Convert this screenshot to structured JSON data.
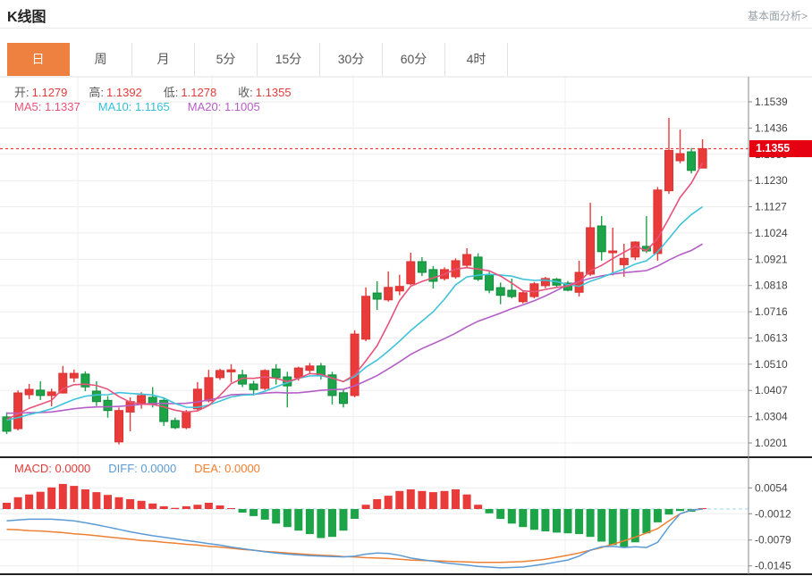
{
  "header": {
    "title": "K线图",
    "link": "基本面分析>"
  },
  "tabs": {
    "items": [
      "日",
      "周",
      "月",
      "5分",
      "15分",
      "30分",
      "60分",
      "4时"
    ],
    "active_index": 0
  },
  "legend_ohlc": {
    "o_label": "开:",
    "o": "1.1279",
    "h_label": "高:",
    "h": "1.1392",
    "l_label": "低:",
    "l": "1.1278",
    "c_label": "收:",
    "c": "1.1355"
  },
  "legend_ma": {
    "ma5_label": "MA5:",
    "ma5": "1.1337",
    "ma10_label": "MA10:",
    "ma10": "1.1165",
    "ma20_label": "MA20:",
    "ma20": "1.1005"
  },
  "legend_macd": {
    "macd_label": "MACD:",
    "macd": "0.0000",
    "diff_label": "DIFF:",
    "diff": "0.0000",
    "dea_label": "DEA:",
    "dea": "0.0000"
  },
  "price_badge": {
    "value": "1.1355"
  },
  "chart_data": {
    "type": "candlestick",
    "title": "K线图",
    "y_range": [
      1.0201,
      1.1539
    ],
    "y_ticks": [
      "1.1539",
      "1.1436",
      "1.1333",
      "1.1230",
      "1.1127",
      "1.1024",
      "1.0921",
      "1.0818",
      "1.0716",
      "1.0613",
      "1.0510",
      "1.0407",
      "1.0304",
      "1.0201"
    ],
    "current_price": 1.1355,
    "current_price_label": "1.1355",
    "v_grid": [
      87,
      237,
      395,
      632
    ],
    "colors": {
      "up": "#e83b3a",
      "up_border": "#d93432",
      "down": "#1da449",
      "down_border": "#0f8a3a",
      "ma5": "#e8537a",
      "ma10": "#3fc3da",
      "ma20": "#b45ec6",
      "diff": "#5b9bd5",
      "dea": "#ed8033",
      "badge": "#e50012",
      "dotted": "#f43b3b"
    },
    "ma_windows": [
      5,
      10,
      20
    ],
    "ma_seed": [
      1.04,
      1.039,
      1.038,
      1.037,
      1.036,
      1.035,
      1.034,
      1.033,
      1.032,
      1.031,
      1.03,
      1.0295,
      1.029,
      1.0285,
      1.028,
      1.0285,
      1.029,
      1.03,
      1.031,
      1.032
    ],
    "candles": [
      [
        1.0303,
        1.0321,
        1.0236,
        1.0247
      ],
      [
        1.0257,
        1.0407,
        1.025,
        1.0397
      ],
      [
        1.039,
        1.0432,
        1.0373,
        1.0411
      ],
      [
        1.0408,
        1.0443,
        1.0369,
        1.0387
      ],
      [
        1.0387,
        1.0414,
        1.0345,
        1.0401
      ],
      [
        1.0397,
        1.0503,
        1.0395,
        1.0474
      ],
      [
        1.0456,
        1.0489,
        1.0439,
        1.0474
      ],
      [
        1.0471,
        1.0482,
        1.0404,
        1.0421
      ],
      [
        1.0404,
        1.0443,
        1.0346,
        1.0363
      ],
      [
        1.0368,
        1.0385,
        1.03,
        1.0328
      ],
      [
        1.0205,
        1.034,
        1.0195,
        1.0328
      ],
      [
        1.0322,
        1.038,
        1.0247,
        1.0363
      ],
      [
        1.0356,
        1.04,
        1.0335,
        1.0387
      ],
      [
        1.038,
        1.042,
        1.034,
        1.0352
      ],
      [
        1.0368,
        1.038,
        1.0268,
        1.0285
      ],
      [
        1.0289,
        1.03,
        1.0255,
        1.0261
      ],
      [
        1.0261,
        1.033,
        1.0255,
        1.0324
      ],
      [
        1.0335,
        1.044,
        1.033,
        1.0412
      ],
      [
        1.0366,
        1.0488,
        1.036,
        1.0457
      ],
      [
        1.0457,
        1.0492,
        1.0448,
        1.0485
      ],
      [
        1.048,
        1.051,
        1.0438,
        1.0488
      ],
      [
        1.0468,
        1.0488,
        1.042,
        1.0432
      ],
      [
        1.0432,
        1.0445,
        1.0387,
        1.041
      ],
      [
        1.0415,
        1.049,
        1.0408,
        1.0485
      ],
      [
        1.0491,
        1.051,
        1.043,
        1.0457
      ],
      [
        1.046,
        1.048,
        1.034,
        1.0425
      ],
      [
        1.0457,
        1.05,
        1.0445,
        1.0495
      ],
      [
        1.0486,
        1.0515,
        1.0475,
        1.0503
      ],
      [
        1.0503,
        1.0515,
        1.045,
        1.0468
      ],
      [
        1.0468,
        1.048,
        1.0352,
        1.0387
      ],
      [
        1.0398,
        1.041,
        1.034,
        1.0356
      ],
      [
        1.0387,
        1.0643,
        1.038,
        1.0628
      ],
      [
        1.0608,
        1.0811,
        1.06,
        1.0776
      ],
      [
        1.0789,
        1.0835,
        1.0723,
        1.0765
      ],
      [
        1.0762,
        1.0874,
        1.0755,
        1.0811
      ],
      [
        1.0797,
        1.0861,
        1.078,
        1.0815
      ],
      [
        1.0825,
        1.0947,
        1.082,
        1.0912
      ],
      [
        1.0912,
        1.093,
        1.0855,
        1.087
      ],
      [
        1.0881,
        1.0895,
        1.0807,
        1.0835
      ],
      [
        1.0846,
        1.089,
        1.0838,
        1.0881
      ],
      [
        1.0853,
        1.0925,
        1.0845,
        1.0916
      ],
      [
        1.0898,
        1.0965,
        1.089,
        1.094
      ],
      [
        1.093,
        1.0945,
        1.0836,
        1.0843
      ],
      [
        1.086,
        1.0872,
        1.0788,
        1.08
      ],
      [
        1.081,
        1.083,
        1.0745,
        1.078
      ],
      [
        1.08,
        1.0846,
        1.0768,
        1.0775
      ],
      [
        1.0755,
        1.0795,
        1.0748,
        1.079
      ],
      [
        1.0775,
        1.0832,
        1.0768,
        1.0825
      ],
      [
        1.0818,
        1.0852,
        1.0808,
        1.0846
      ],
      [
        1.0843,
        1.0848,
        1.0812,
        1.082
      ],
      [
        1.0828,
        1.0836,
        1.0796,
        1.08
      ],
      [
        1.0792,
        1.0916,
        1.0775,
        1.087
      ],
      [
        1.0863,
        1.1143,
        1.0856,
        1.1045
      ],
      [
        1.1052,
        1.1091,
        1.0916,
        1.0951
      ],
      [
        1.0947,
        1.1045,
        1.0858,
        1.0954
      ],
      [
        1.09,
        1.0982,
        1.0853,
        1.0925
      ],
      [
        1.093,
        1.0992,
        1.0918,
        1.0989
      ],
      [
        1.0972,
        1.1091,
        1.0946,
        1.0954
      ],
      [
        1.0944,
        1.1205,
        1.0916,
        1.1193
      ],
      [
        1.119,
        1.1476,
        1.1178,
        1.1348
      ],
      [
        1.1308,
        1.143,
        1.1298,
        1.1336
      ],
      [
        1.1343,
        1.1358,
        1.1258,
        1.127
      ],
      [
        1.1279,
        1.1392,
        1.1278,
        1.1355
      ]
    ],
    "macd": {
      "tick_labels": [
        "0.0054",
        "-0.0012",
        "-0.0079",
        "-0.0145"
      ],
      "tick_values": [
        0.0054,
        -0.0012,
        -0.0079,
        -0.0145
      ],
      "hist": [
        0.0016,
        0.003,
        0.0037,
        0.0044,
        0.0055,
        0.0064,
        0.0059,
        0.005,
        0.0043,
        0.0036,
        0.003,
        0.0025,
        0.0021,
        0.0014,
        0.0007,
        0.0003,
        0.0007,
        0.0011,
        0.0016,
        0.0009,
        0.0002,
        -0.0009,
        -0.0018,
        -0.0027,
        -0.0037,
        -0.0046,
        -0.0055,
        -0.0064,
        -0.0074,
        -0.0071,
        -0.0055,
        -0.0025,
        0.0011,
        0.0025,
        0.0034,
        0.0046,
        0.005,
        0.0046,
        0.0043,
        0.0046,
        0.005,
        0.0037,
        0.0011,
        -0.0011,
        -0.0025,
        -0.0037,
        -0.0046,
        -0.0053,
        -0.0057,
        -0.006,
        -0.0062,
        -0.0064,
        -0.0071,
        -0.0083,
        -0.0092,
        -0.0097,
        -0.0085,
        -0.0062,
        -0.0034,
        -0.0014,
        -0.0005,
        -0.0007,
        0.0
      ],
      "diff": [
        -0.003,
        -0.0028,
        -0.0026,
        -0.0026,
        -0.0026,
        -0.0028,
        -0.003,
        -0.0035,
        -0.004,
        -0.0046,
        -0.0052,
        -0.0058,
        -0.0063,
        -0.0068,
        -0.0072,
        -0.0076,
        -0.008,
        -0.0084,
        -0.0088,
        -0.0092,
        -0.0097,
        -0.0101,
        -0.0105,
        -0.0109,
        -0.0112,
        -0.0115,
        -0.0117,
        -0.0119,
        -0.012,
        -0.0121,
        -0.0122,
        -0.012,
        -0.0115,
        -0.0112,
        -0.0113,
        -0.0118,
        -0.0125,
        -0.0129,
        -0.0133,
        -0.0137,
        -0.014,
        -0.0143,
        -0.0146,
        -0.0148,
        -0.015,
        -0.0149,
        -0.0148,
        -0.0144,
        -0.014,
        -0.0135,
        -0.013,
        -0.012,
        -0.0105,
        -0.0096,
        -0.0095,
        -0.0098,
        -0.0096,
        -0.0098,
        -0.0085,
        -0.0045,
        -0.0012,
        -0.0003,
        0.0
      ],
      "dea": [
        -0.0052,
        -0.0053,
        -0.0055,
        -0.0056,
        -0.0058,
        -0.006,
        -0.0063,
        -0.0065,
        -0.0068,
        -0.0071,
        -0.0074,
        -0.0077,
        -0.008,
        -0.0082,
        -0.0085,
        -0.0087,
        -0.009,
        -0.0092,
        -0.0095,
        -0.0097,
        -0.01,
        -0.0103,
        -0.0105,
        -0.0108,
        -0.011,
        -0.0112,
        -0.0114,
        -0.0116,
        -0.0118,
        -0.0119,
        -0.0121,
        -0.0122,
        -0.0124,
        -0.0125,
        -0.0126,
        -0.0128,
        -0.013,
        -0.0131,
        -0.0132,
        -0.0133,
        -0.0134,
        -0.0135,
        -0.0136,
        -0.0136,
        -0.0136,
        -0.0135,
        -0.0134,
        -0.0131,
        -0.0128,
        -0.0123,
        -0.0118,
        -0.0112,
        -0.0105,
        -0.0098,
        -0.009,
        -0.0081,
        -0.0072,
        -0.0061,
        -0.005,
        -0.003,
        -0.0012,
        -0.0003,
        0.0
      ]
    }
  }
}
